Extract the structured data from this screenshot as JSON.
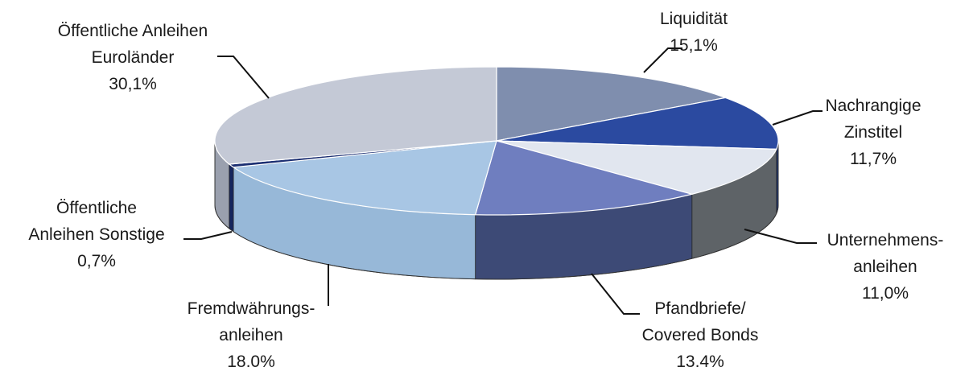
{
  "chart_data": {
    "type": "pie",
    "style": "3d",
    "slices": [
      {
        "name_lines": [
          "Liquidität"
        ],
        "label": "15,1%",
        "value": 15.1,
        "top": "#7f8eae",
        "side": "#5c6a88"
      },
      {
        "name_lines": [
          "Nachrangige",
          "Zinstitel"
        ],
        "label": "11,7%",
        "value": 11.7,
        "top": "#2b4aa0",
        "side": "#1e3473"
      },
      {
        "name_lines": [
          "Unternehmens-",
          "anleihen"
        ],
        "label": "11,0%",
        "value": 11.0,
        "top": "#e1e6ef",
        "side": "#5e6367"
      },
      {
        "name_lines": [
          "Pfandbriefe/",
          "Covered Bonds"
        ],
        "label": "13,4%",
        "value": 13.4,
        "top": "#6f7ebf",
        "side": "#3d4a76"
      },
      {
        "name_lines": [
          "Fremdwährungs-",
          "anleihen"
        ],
        "label": "18,0%",
        "value": 18.0,
        "top": "#a8c6e4",
        "side": "#97b8d8"
      },
      {
        "name_lines": [
          "Öffentliche",
          "Anleihen Sonstige"
        ],
        "label": "0,7%",
        "value": 0.7,
        "top": "#1c2f72",
        "side": "#15255e"
      },
      {
        "name_lines": [
          "Öffentliche Anleihen",
          "Euroländer"
        ],
        "label": "30,1%",
        "value": 30.1,
        "top": "#c4c9d6",
        "side": "#9aa0ae"
      }
    ]
  }
}
